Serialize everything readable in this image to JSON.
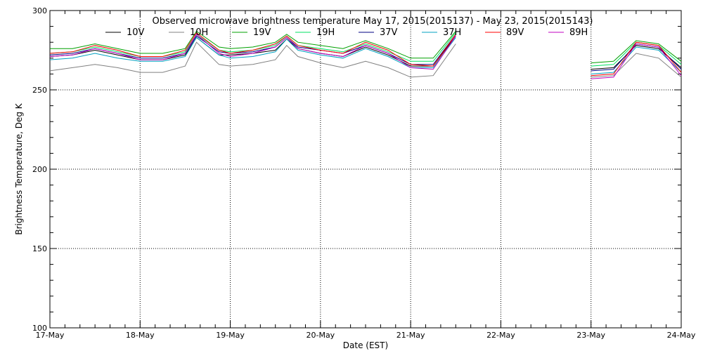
{
  "chart_data": {
    "type": "line",
    "title": "Observed microwave brightness temperature May 17, 2015(2015137) - May 23, 2015(2015143)",
    "xlabel": "Date (EST)",
    "ylabel": "Brightness Temperature, Deg K",
    "ylim": [
      100,
      300
    ],
    "xlim": [
      "2015-05-17 00:00",
      "2015-05-24 00:00"
    ],
    "x_tick_labels": [
      "17-May",
      "18-May",
      "19-May",
      "20-May",
      "21-May",
      "22-May",
      "23-May",
      "24-May"
    ],
    "y_tick_labels": [
      "100",
      "150",
      "200",
      "250",
      "300"
    ],
    "grid": true,
    "legend_position": "top",
    "x": [
      "2015-05-17 00:00",
      "2015-05-17 06:00",
      "2015-05-17 12:00",
      "2015-05-17 18:00",
      "2015-05-18 00:00",
      "2015-05-18 06:00",
      "2015-05-18 12:00",
      "2015-05-18 15:00",
      "2015-05-18 21:00",
      "2015-05-19 00:00",
      "2015-05-19 06:00",
      "2015-05-19 12:00",
      "2015-05-19 15:00",
      "2015-05-19 18:00",
      "2015-05-20 00:00",
      "2015-05-20 06:00",
      "2015-05-20 12:00",
      "2015-05-20 18:00",
      "2015-05-21 00:00",
      "2015-05-21 06:00",
      "2015-05-21 12:00",
      "2015-05-22 18:00",
      "2015-05-23 00:00",
      "2015-05-23 06:00",
      "2015-05-23 12:00",
      "2015-05-23 18:00",
      "2015-05-24 00:00"
    ],
    "series": [
      {
        "name": "10V",
        "color": "#000000",
        "values": [
          271,
          272,
          275,
          272,
          269,
          269,
          272,
          283,
          272,
          272,
          273,
          275,
          282,
          276,
          273,
          271,
          277,
          272,
          265,
          265,
          284,
          null,
          263,
          264,
          278,
          276,
          264
        ]
      },
      {
        "name": "10H",
        "color": "#808080",
        "values": [
          262,
          264,
          266,
          264,
          261,
          261,
          265,
          280,
          266,
          265,
          266,
          269,
          278,
          271,
          267,
          264,
          268,
          264,
          258,
          259,
          279,
          null,
          258,
          259,
          273,
          270,
          258
        ]
      },
      {
        "name": "19V",
        "color": "#00a000",
        "values": [
          276,
          276,
          279,
          276,
          273,
          273,
          276,
          287,
          277,
          276,
          277,
          280,
          285,
          280,
          278,
          276,
          281,
          276,
          270,
          270,
          287,
          null,
          267,
          268,
          281,
          279,
          268
        ]
      },
      {
        "name": "19H",
        "color": "#00e060",
        "values": [
          273,
          274,
          277,
          274,
          271,
          271,
          274,
          285,
          275,
          274,
          275,
          278,
          284,
          278,
          276,
          274,
          279,
          274,
          268,
          268,
          286,
          null,
          265,
          266,
          280,
          278,
          266
        ]
      },
      {
        "name": "37V",
        "color": "#000080",
        "values": [
          272,
          273,
          276,
          273,
          270,
          270,
          273,
          284,
          274,
          273,
          274,
          277,
          283,
          277,
          275,
          273,
          278,
          273,
          266,
          266,
          285,
          null,
          262,
          263,
          279,
          277,
          263
        ]
      },
      {
        "name": "37H",
        "color": "#00a0c0",
        "values": [
          269,
          270,
          273,
          270,
          268,
          268,
          271,
          283,
          272,
          270,
          271,
          274,
          282,
          275,
          272,
          270,
          276,
          271,
          264,
          264,
          283,
          null,
          260,
          261,
          277,
          275,
          261
        ]
      },
      {
        "name": "89V",
        "color": "#ff0000",
        "values": [
          273,
          274,
          278,
          275,
          271,
          271,
          275,
          286,
          275,
          273,
          275,
          279,
          284,
          278,
          275,
          273,
          280,
          275,
          266,
          265,
          285,
          null,
          259,
          260,
          280,
          278,
          261
        ]
      },
      {
        "name": "89H",
        "color": "#c000c0",
        "values": [
          271,
          272,
          276,
          273,
          269,
          269,
          273,
          285,
          273,
          271,
          273,
          277,
          283,
          276,
          273,
          271,
          278,
          273,
          264,
          263,
          284,
          null,
          257,
          258,
          279,
          277,
          259
        ]
      }
    ]
  }
}
